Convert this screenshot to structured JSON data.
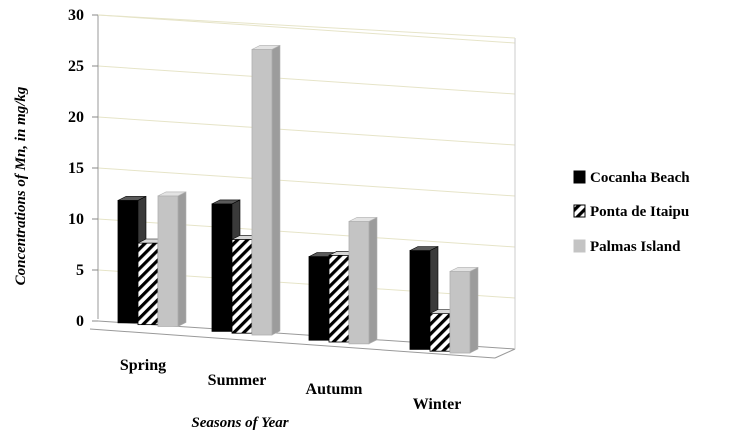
{
  "chart_data": {
    "type": "bar",
    "style": "3d-clustered-column",
    "categories": [
      "Spring",
      "Summer",
      "Autumn",
      "Winter"
    ],
    "series": [
      {
        "name": "Cocanha Beach",
        "values": [
          12,
          12.5,
          8.2,
          9.7
        ],
        "fill": "solid-black"
      },
      {
        "name": "Ponta de Itaipu",
        "values": [
          8,
          9.2,
          8.5,
          3.7
        ],
        "fill": "diagonal-hatch"
      },
      {
        "name": "Palmas Island",
        "values": [
          12.8,
          28,
          12,
          8
        ],
        "fill": "light-gray"
      }
    ],
    "xlabel": "Seasons of Year",
    "ylabel": "Concentrations of Mn, in mg/kg",
    "ylim": [
      0,
      30
    ],
    "yticks": [
      0,
      5,
      10,
      15,
      20,
      25,
      30
    ],
    "grid": true,
    "legend_position": "right",
    "colors": {
      "series1": "#000000",
      "series2_stroke": "#000000",
      "series3": "#c0c0c0",
      "grid": "#e6e4c8"
    }
  }
}
